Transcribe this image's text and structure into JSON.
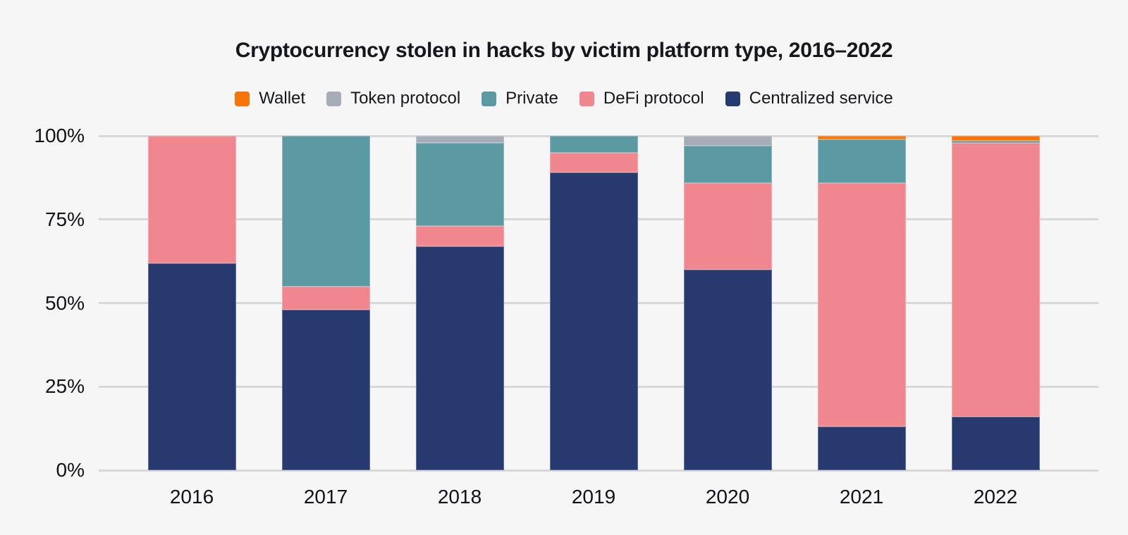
{
  "title": "Cryptocurrency stolen in hacks by victim platform type, 2016–2022",
  "style": {
    "background": "#f6f6f6",
    "gridline_color": "#d8d8d8",
    "text_color": "#16161d"
  },
  "chart_data": {
    "type": "bar",
    "stacked": true,
    "units": "percent_of_total",
    "title": "Cryptocurrency stolen in hacks by victim platform type, 2016–2022",
    "xlabel": "",
    "ylabel": "",
    "ylim": [
      0,
      100
    ],
    "grid": "horizontal",
    "legend_position": "top-center",
    "categories": [
      "2016",
      "2017",
      "2018",
      "2019",
      "2020",
      "2021",
      "2022"
    ],
    "series": [
      {
        "name": "Centralized service",
        "color": "#273a70",
        "values": [
          62,
          48,
          67,
          89,
          60,
          13,
          16
        ]
      },
      {
        "name": "DeFi protocol",
        "color": "#f0868e",
        "values": [
          38,
          7,
          6,
          6,
          26,
          73,
          82
        ]
      },
      {
        "name": "Private",
        "color": "#5b9aa3",
        "values": [
          0,
          45,
          25,
          5,
          11,
          13,
          0.5
        ]
      },
      {
        "name": "Token protocol",
        "color": "#a6adb9",
        "values": [
          0,
          0,
          2,
          0,
          3,
          0,
          0
        ]
      },
      {
        "name": "Wallet",
        "color": "#f87408",
        "values": [
          0,
          0,
          0,
          0,
          0,
          1,
          1.5
        ]
      }
    ],
    "legend": [
      "Wallet",
      "Token protocol",
      "Private",
      "DeFi protocol",
      "Centralized service"
    ],
    "yticks": {
      "values": [
        0,
        25,
        50,
        75,
        100
      ],
      "labels": [
        "0%",
        "25%",
        "50%",
        "75%",
        "100%"
      ]
    }
  }
}
